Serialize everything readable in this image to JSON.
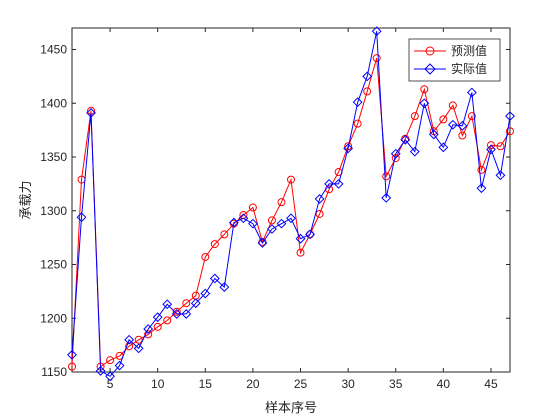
{
  "chart_data": {
    "type": "line",
    "title": "",
    "xlabel": "样本序号",
    "ylabel": "承载力",
    "xlim": [
      1,
      47
    ],
    "ylim": [
      1150,
      1470
    ],
    "xticks": [
      5,
      10,
      15,
      20,
      25,
      30,
      35,
      40,
      45
    ],
    "yticks": [
      1150,
      1200,
      1250,
      1300,
      1350,
      1400,
      1450
    ],
    "grid": false,
    "legend_position": "top-right",
    "x": [
      1,
      2,
      3,
      4,
      5,
      6,
      7,
      8,
      9,
      10,
      11,
      12,
      13,
      14,
      15,
      16,
      17,
      18,
      19,
      20,
      21,
      22,
      23,
      24,
      25,
      26,
      27,
      28,
      29,
      30,
      31,
      32,
      33,
      34,
      35,
      36,
      37,
      38,
      39,
      40,
      41,
      42,
      43,
      44,
      45,
      46,
      47
    ],
    "series": [
      {
        "name": "预测值",
        "color": "#ff0000",
        "marker": "circle",
        "values": [
          1155,
          1329,
          1393,
          1155,
          1161,
          1165,
          1174,
          1180,
          1185,
          1192,
          1198,
          1206,
          1214,
          1221,
          1257,
          1269,
          1278,
          1288,
          1296,
          1303,
          1271,
          1291,
          1308,
          1329,
          1261,
          1278,
          1297,
          1320,
          1336,
          1360,
          1381,
          1411,
          1442,
          1332,
          1349,
          1367,
          1388,
          1413,
          1374,
          1385,
          1398,
          1370,
          1388,
          1338,
          1361,
          1360,
          1374
        ]
      },
      {
        "name": "实际值",
        "color": "#0000ff",
        "marker": "diamond",
        "values": [
          1166,
          1294,
          1391,
          1151,
          1146,
          1156,
          1180,
          1172,
          1190,
          1201,
          1213,
          1204,
          1204,
          1214,
          1223,
          1237,
          1229,
          1289,
          1293,
          1288,
          1270,
          1283,
          1288,
          1293,
          1274,
          1278,
          1311,
          1325,
          1325,
          1358,
          1401,
          1425,
          1467,
          1312,
          1353,
          1366,
          1355,
          1400,
          1371,
          1359,
          1380,
          1379,
          1410,
          1321,
          1357,
          1333,
          1388
        ]
      }
    ]
  }
}
